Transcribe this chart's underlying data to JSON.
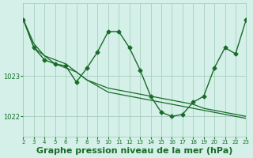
{
  "background_color": "#d4f0e8",
  "grid_color": "#a0c8b8",
  "line_color": "#1a6b2a",
  "marker_color": "#1a6b2a",
  "xlabel": "Graphe pression niveau de la mer (hPa)",
  "xlabel_fontsize": 8,
  "ylabel_fontsize": 7,
  "xlim": [
    2,
    23
  ],
  "ylim": [
    1021.5,
    1024.8
  ],
  "yticks": [
    1022,
    1023
  ],
  "xticks": [
    2,
    3,
    4,
    5,
    6,
    7,
    8,
    9,
    10,
    11,
    12,
    13,
    14,
    15,
    16,
    17,
    18,
    19,
    20,
    21,
    22,
    23
  ],
  "series1_x": [
    2,
    3,
    4,
    5,
    6,
    7,
    8,
    9,
    10,
    11,
    12,
    13,
    14,
    15,
    16,
    17,
    18,
    19,
    20,
    21,
    22,
    23
  ],
  "series1_y": [
    1024.4,
    1023.8,
    1023.5,
    1023.3,
    1023.2,
    1023.1,
    1022.9,
    1022.8,
    1022.7,
    1022.65,
    1022.6,
    1022.55,
    1022.5,
    1022.45,
    1022.4,
    1022.35,
    1022.3,
    1022.2,
    1022.15,
    1022.1,
    1022.05,
    1022.0
  ],
  "series2_x": [
    2,
    3,
    4,
    5,
    6,
    7,
    8,
    9,
    10,
    11,
    12,
    13,
    14,
    15,
    16,
    17,
    18,
    19,
    20,
    21,
    22,
    23
  ],
  "series2_y": [
    1024.4,
    1023.7,
    1023.5,
    1023.4,
    1023.3,
    1023.1,
    1022.9,
    1022.75,
    1022.6,
    1022.55,
    1022.5,
    1022.45,
    1022.4,
    1022.35,
    1022.3,
    1022.25,
    1022.2,
    1022.15,
    1022.1,
    1022.05,
    1022.0,
    1021.95
  ],
  "series3_x": [
    2,
    3,
    4,
    5,
    6,
    7,
    8,
    9,
    10,
    11,
    12,
    13,
    14,
    15,
    16,
    17,
    18,
    19,
    20,
    21,
    22,
    23
  ],
  "series3_y": [
    1024.4,
    1023.7,
    1023.4,
    1023.3,
    1023.25,
    1022.85,
    1023.2,
    1023.6,
    1024.1,
    1024.1,
    1023.7,
    1023.15,
    1022.5,
    1022.1,
    1022.0,
    1022.05,
    1022.35,
    1022.5,
    1023.2,
    1023.7,
    1023.55,
    1024.4
  ]
}
